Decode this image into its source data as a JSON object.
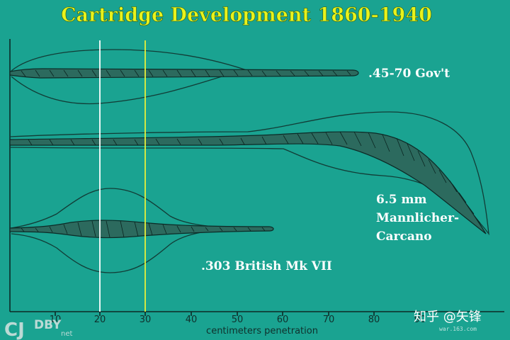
{
  "title": "Cartridge Development 1860-1940",
  "cartridges": {
    "gov": ".45-70 Gov't",
    "mannlicher_line1": "6.5 mm",
    "mannlicher_line2": "Mannlicher-",
    "mannlicher_line3": "Carcano",
    "british": ".303 British Mk VII"
  },
  "x_axis": {
    "label": "centimeters penetration",
    "ticks": [
      "10",
      "20",
      "30",
      "40",
      "50",
      "60",
      "70",
      "80",
      "90"
    ]
  },
  "reference_lines": {
    "white_cm": 20,
    "yellow_cm": 30
  },
  "watermarks": {
    "logo_left": "CJ",
    "logo_right": "DBY",
    "logo_sub": "net",
    "zhihu": "知乎 @矢锋",
    "site": "war.163.com"
  },
  "colors": {
    "background": "#1aa391",
    "title": "#e8f21c",
    "label": "#ffffff",
    "white_line": "#ffffff",
    "yellow_line": "#e6f03a"
  }
}
